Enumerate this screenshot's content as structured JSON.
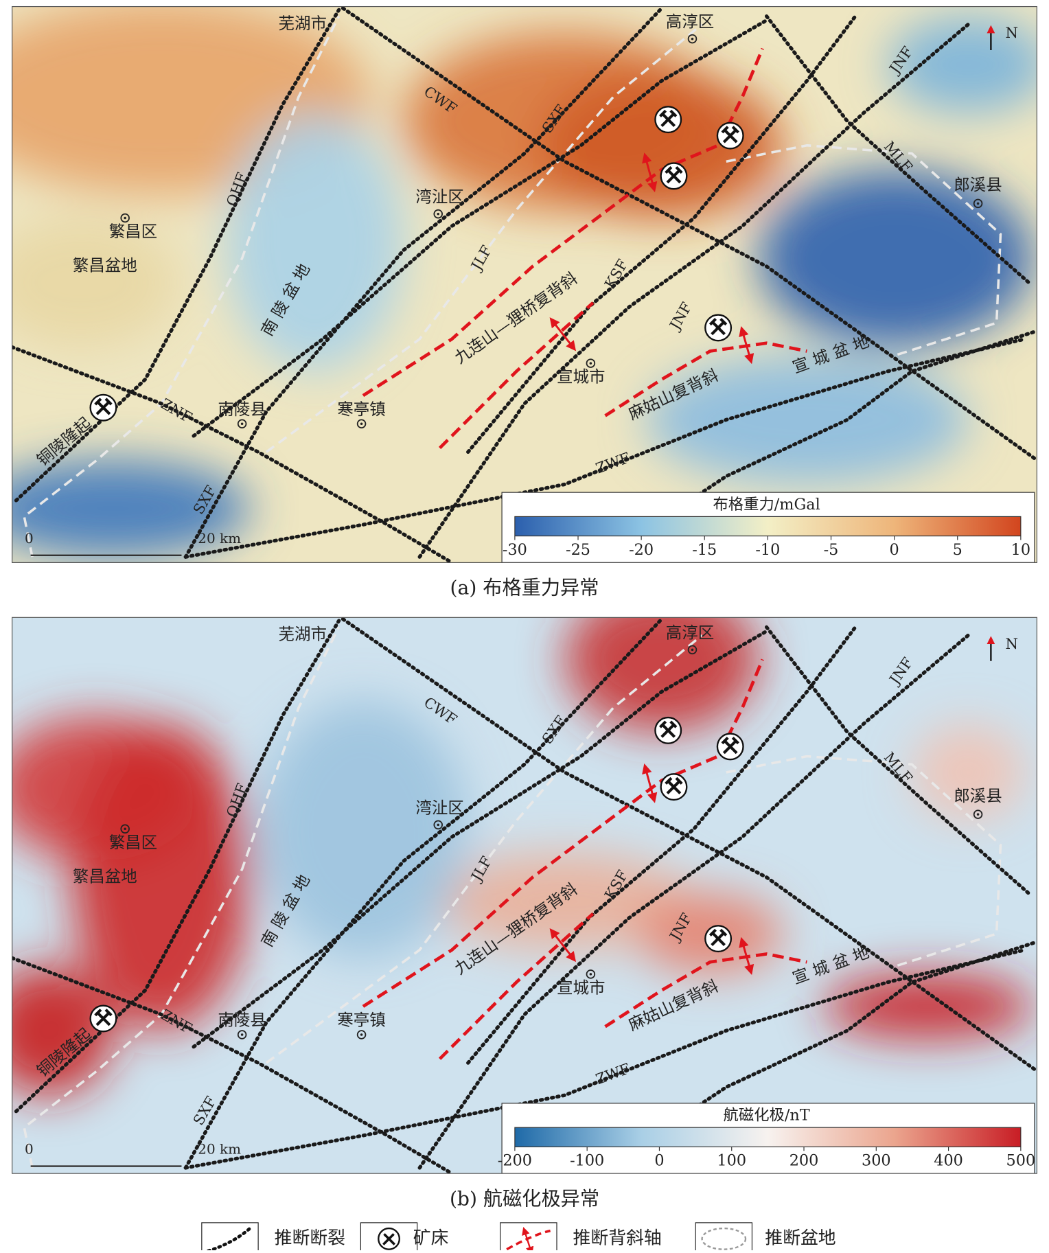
{
  "panels": [
    {
      "caption": "(a) 布格重力异常",
      "north": "N",
      "places": [
        "芜湖市",
        "高淳区",
        "湾沚区",
        "繁昌区",
        "繁昌盆地",
        "南陵县",
        "寒亭镇",
        "宣城市",
        "郎溪县"
      ],
      "regions": [
        "南 陵 盆 地",
        "九连山—狸桥复背斜",
        "宣 城 盆 地",
        "麻姑山复背斜",
        "铜陵隆起"
      ],
      "faults": [
        "CWF",
        "SXF",
        "QHF",
        "JLF",
        "KSF",
        "JNF",
        "JNF",
        "MLF",
        "ZNF",
        "SXF",
        "ZWF"
      ],
      "scale": [
        "0",
        "20 km"
      ],
      "colorbar": {
        "title": "布格重力/mGal",
        "ticks": [
          -30,
          -25,
          -20,
          -15,
          -10,
          -5,
          0,
          5,
          10
        ],
        "colors": [
          "#2b5fad",
          "#8cc3e3",
          "#f3efc6",
          "#eeb57a",
          "#d2451e"
        ]
      }
    },
    {
      "caption": "(b) 航磁化极异常",
      "north": "N",
      "places": [
        "芜湖市",
        "高淳区",
        "湾沚区",
        "繁昌区",
        "繁昌盆地",
        "南陵县",
        "寒亭镇",
        "宣城市",
        "郎溪县"
      ],
      "regions": [
        "南 陵 盆 地",
        "九连山—狸桥复背斜",
        "宣 城 盆 地",
        "麻姑山复背斜",
        "铜陵隆起"
      ],
      "faults": [
        "CWF",
        "SXF",
        "QHF",
        "JLF",
        "KSF",
        "JNF",
        "JNF",
        "MLF",
        "ZNF",
        "SXF",
        "ZWF"
      ],
      "scale": [
        "0",
        "20 km"
      ],
      "colorbar": {
        "title": "航磁化极/nT",
        "ticks": [
          -200,
          -100,
          0,
          100,
          200,
          300,
          400,
          500
        ],
        "colors": [
          "#1f6aa8",
          "#a9cfe6",
          "#f7f2ef",
          "#eba58e",
          "#c81d25"
        ]
      }
    }
  ],
  "legend": [
    "推断断裂",
    "矿床",
    "推断背斜轴",
    "推断盆地"
  ]
}
